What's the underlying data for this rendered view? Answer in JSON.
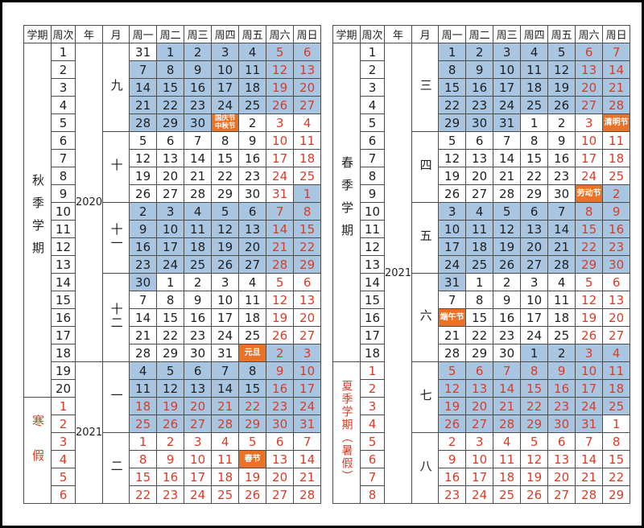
{
  "colors": {
    "blue": "#A8C5E2",
    "orange": "#E97227",
    "red": "#DB3B26",
    "ink": "#1F1F1F",
    "grid": "#4C4C4C",
    "white": "#FFFFFF"
  },
  "header": [
    "学期",
    "周次",
    "年",
    "月",
    "周一",
    "周二",
    "周三",
    "周四",
    "周五",
    "周六",
    "周日"
  ],
  "tables": [
    {
      "name": "fall-winter",
      "semesters": [
        {
          "label": "秋季学期",
          "span": 20,
          "red": false
        },
        {
          "label": "寒假",
          "span": 6,
          "red": true
        }
      ],
      "years": [
        {
          "label": "2020",
          "span": 18
        },
        {
          "label": "2021",
          "span": 8
        }
      ],
      "months": [
        {
          "label": "九",
          "span": 5
        },
        {
          "label": "十",
          "span": 4
        },
        {
          "label": "十一",
          "span": 4
        },
        {
          "label": "十二",
          "span": 5
        },
        {
          "label": "一",
          "span": 4
        },
        {
          "label": "二",
          "span": 4
        }
      ],
      "weeks": {
        "black": [
          "1",
          "2",
          "3",
          "4",
          "5",
          "6",
          "7",
          "8",
          "9",
          "10",
          "11",
          "12",
          "13",
          "14",
          "15",
          "16",
          "17",
          "18",
          "19",
          "20"
        ],
        "red": [
          "1",
          "2",
          "3",
          "4",
          "5",
          "6"
        ]
      },
      "rows": [
        [
          "31|w|k",
          "1|b|k",
          "2|b|k",
          "3|b|k",
          "4|b|k",
          "5|b|r",
          "6|b|r"
        ],
        [
          "7|b|k",
          "8|b|k",
          "9|b|k",
          "10|b|k",
          "11|b|k",
          "12|b|r",
          "13|b|r"
        ],
        [
          "14|b|k",
          "15|b|k",
          "16|b|k",
          "17|b|k",
          "18|b|k",
          "19|b|r",
          "20|b|r"
        ],
        [
          "21|b|k",
          "22|b|k",
          "23|b|k",
          "24|b|k",
          "25|b|k",
          "26|b|r",
          "27|b|r"
        ],
        [
          "28|b|k",
          "29|b|k",
          "30|b|k",
          "国庆节/中秋节|o|w|h2",
          "2|w|k",
          "3|w|r",
          "4|w|r"
        ],
        [
          "5|w|k",
          "6|w|k",
          "7|w|k",
          "8|w|k",
          "9|w|k",
          "10|w|r",
          "11|w|r"
        ],
        [
          "12|w|k",
          "13|w|k",
          "14|w|k",
          "15|w|k",
          "16|w|k",
          "17|w|r",
          "18|w|r"
        ],
        [
          "19|w|k",
          "20|w|k",
          "21|w|k",
          "22|w|k",
          "23|w|k",
          "24|w|r",
          "25|w|r"
        ],
        [
          "26|w|k",
          "27|w|k",
          "28|w|k",
          "29|w|k",
          "30|w|k",
          "31|w|r",
          "1|b|r"
        ],
        [
          "2|b|k",
          "3|b|k",
          "4|b|k",
          "5|b|k",
          "6|b|k",
          "7|b|r",
          "8|b|r"
        ],
        [
          "9|b|k",
          "10|b|k",
          "11|b|k",
          "12|b|k",
          "13|b|k",
          "14|b|r",
          "15|b|r"
        ],
        [
          "16|b|k",
          "17|b|k",
          "18|b|k",
          "19|b|k",
          "20|b|k",
          "21|b|r",
          "22|b|r"
        ],
        [
          "23|b|k",
          "24|b|k",
          "25|b|k",
          "26|b|k",
          "27|b|k",
          "28|b|r",
          "29|b|r"
        ],
        [
          "30|b|k",
          "1|w|k",
          "2|w|k",
          "3|w|k",
          "4|w|k",
          "5|w|r",
          "6|w|r"
        ],
        [
          "7|w|k",
          "8|w|k",
          "9|w|k",
          "10|w|k",
          "11|w|k",
          "12|w|r",
          "13|w|r"
        ],
        [
          "14|w|k",
          "15|w|k",
          "16|w|k",
          "17|w|k",
          "18|w|k",
          "19|w|r",
          "20|w|r"
        ],
        [
          "21|w|k",
          "22|w|k",
          "23|w|k",
          "24|w|k",
          "25|w|k",
          "26|w|r",
          "27|w|r"
        ],
        [
          "28|w|k",
          "29|w|k",
          "30|w|k",
          "31|w|k",
          "元旦|o|w|h",
          "2|b|r",
          "3|b|r"
        ],
        [
          "4|b|k",
          "5|b|k",
          "6|b|k",
          "7|b|k",
          "8|b|k",
          "9|b|r",
          "10|b|r"
        ],
        [
          "11|b|k",
          "12|b|k",
          "13|b|k",
          "14|b|k",
          "15|b|k",
          "16|b|r",
          "17|b|r"
        ],
        [
          "18|b|r",
          "19|b|r",
          "20|b|r",
          "21|b|r",
          "22|b|r",
          "23|b|r",
          "24|b|r"
        ],
        [
          "25|b|r",
          "26|b|r",
          "27|b|r",
          "28|b|r",
          "29|b|r",
          "30|b|r",
          "31|b|r"
        ],
        [
          "1|w|r",
          "2|w|r",
          "3|w|r",
          "4|w|r",
          "5|w|r",
          "6|w|r",
          "7|w|r"
        ],
        [
          "8|w|r",
          "9|w|r",
          "10|w|r",
          "11|w|r",
          "春节|o|w|h",
          "13|w|r",
          "14|w|r"
        ],
        [
          "15|w|r",
          "16|w|r",
          "17|w|r",
          "18|w|r",
          "19|w|r",
          "20|w|r",
          "21|w|r"
        ],
        [
          "22|w|r",
          "23|w|r",
          "24|w|r",
          "25|w|r",
          "26|w|r",
          "27|w|r",
          "28|w|r"
        ]
      ]
    },
    {
      "name": "spring-summer",
      "semesters": [
        {
          "label": "春季学期",
          "span": 18,
          "red": false
        },
        {
          "label": "夏季学期（暑假）",
          "span": 8,
          "red": true
        }
      ],
      "years": [
        {
          "label": "2021",
          "span": 26
        }
      ],
      "months": [
        {
          "label": "三",
          "span": 5
        },
        {
          "label": "四",
          "span": 4
        },
        {
          "label": "五",
          "span": 4
        },
        {
          "label": "六",
          "span": 5
        },
        {
          "label": "七",
          "span": 4
        },
        {
          "label": "八",
          "span": 4
        }
      ],
      "weeks": {
        "black": [
          "1",
          "2",
          "3",
          "4",
          "5",
          "6",
          "7",
          "8",
          "9",
          "10",
          "11",
          "12",
          "13",
          "14",
          "15",
          "16",
          "17",
          "18"
        ],
        "red": [
          "1",
          "2",
          "3",
          "4",
          "5",
          "6",
          "7",
          "8"
        ]
      },
      "rows": [
        [
          "1|b|k",
          "2|b|k",
          "3|b|k",
          "4|b|k",
          "5|b|k",
          "6|b|r",
          "7|b|r"
        ],
        [
          "8|b|k",
          "9|b|k",
          "10|b|k",
          "11|b|k",
          "12|b|k",
          "13|b|r",
          "14|b|r"
        ],
        [
          "15|b|k",
          "16|b|k",
          "17|b|k",
          "18|b|k",
          "19|b|k",
          "20|b|r",
          "21|b|r"
        ],
        [
          "22|b|k",
          "23|b|k",
          "24|b|k",
          "25|b|k",
          "26|b|k",
          "27|b|r",
          "28|b|r"
        ],
        [
          "29|b|k",
          "30|b|k",
          "31|b|k",
          "1|w|k",
          "2|w|k",
          "3|w|r",
          "清明节|o|w|h"
        ],
        [
          "5|w|k",
          "6|w|k",
          "7|w|k",
          "8|w|k",
          "9|w|k",
          "10|w|r",
          "11|w|r"
        ],
        [
          "12|w|k",
          "13|w|k",
          "14|w|k",
          "15|w|k",
          "16|w|k",
          "17|w|r",
          "18|w|r"
        ],
        [
          "19|w|k",
          "20|w|k",
          "21|w|k",
          "22|w|k",
          "23|w|k",
          "24|w|r",
          "25|w|r"
        ],
        [
          "26|w|k",
          "27|w|k",
          "28|w|k",
          "29|w|k",
          "30|w|k",
          "劳动节|o|w|h",
          "2|b|r"
        ],
        [
          "3|b|k",
          "4|b|k",
          "5|b|k",
          "6|b|k",
          "7|b|k",
          "8|b|r",
          "9|b|r"
        ],
        [
          "10|b|k",
          "11|b|k",
          "12|b|k",
          "13|b|k",
          "14|b|k",
          "15|b|r",
          "16|b|r"
        ],
        [
          "17|b|k",
          "18|b|k",
          "19|b|k",
          "20|b|k",
          "21|b|k",
          "22|b|r",
          "23|b|r"
        ],
        [
          "24|b|k",
          "25|b|k",
          "26|b|k",
          "27|b|k",
          "28|b|k",
          "29|b|r",
          "30|b|r"
        ],
        [
          "31|b|k",
          "1|w|k",
          "2|w|k",
          "3|w|k",
          "4|w|k",
          "5|w|r",
          "6|w|r"
        ],
        [
          "7|w|k",
          "8|w|k",
          "9|w|k",
          "10|w|k",
          "11|w|k",
          "12|w|r",
          "13|w|r"
        ],
        [
          "端午节|o|w|h",
          "15|w|k",
          "16|w|k",
          "17|w|k",
          "18|w|k",
          "19|w|r",
          "20|w|r"
        ],
        [
          "21|w|k",
          "22|w|k",
          "23|w|k",
          "24|w|k",
          "25|w|k",
          "26|w|r",
          "27|w|r"
        ],
        [
          "28|w|k",
          "29|w|k",
          "30|w|k",
          "1|b|k",
          "2|b|k",
          "3|b|r",
          "4|b|r"
        ],
        [
          "5|b|r",
          "6|b|r",
          "7|b|r",
          "8|b|r",
          "9|b|r",
          "10|b|r",
          "11|b|r"
        ],
        [
          "12|b|r",
          "13|b|r",
          "14|b|r",
          "15|b|r",
          "16|b|r",
          "17|b|r",
          "18|b|r"
        ],
        [
          "19|b|r",
          "20|b|r",
          "21|b|r",
          "22|b|r",
          "23|b|r",
          "24|b|r",
          "25|b|r"
        ],
        [
          "26|b|r",
          "27|b|r",
          "28|b|r",
          "29|b|r",
          "30|b|r",
          "31|b|r",
          "1|w|r"
        ],
        [
          "2|w|r",
          "3|w|r",
          "4|w|r",
          "5|w|r",
          "6|w|r",
          "7|w|r",
          "8|w|r"
        ],
        [
          "9|w|r",
          "10|w|r",
          "11|w|r",
          "12|w|r",
          "13|w|r",
          "14|w|r",
          "15|w|r"
        ],
        [
          "16|w|r",
          "17|w|r",
          "18|w|r",
          "19|w|r",
          "20|w|r",
          "21|w|r",
          "22|w|r"
        ],
        [
          "23|w|r",
          "24|w|r",
          "25|w|r",
          "26|w|r",
          "27|w|r",
          "28|w|r",
          "29|w|r"
        ]
      ]
    }
  ]
}
